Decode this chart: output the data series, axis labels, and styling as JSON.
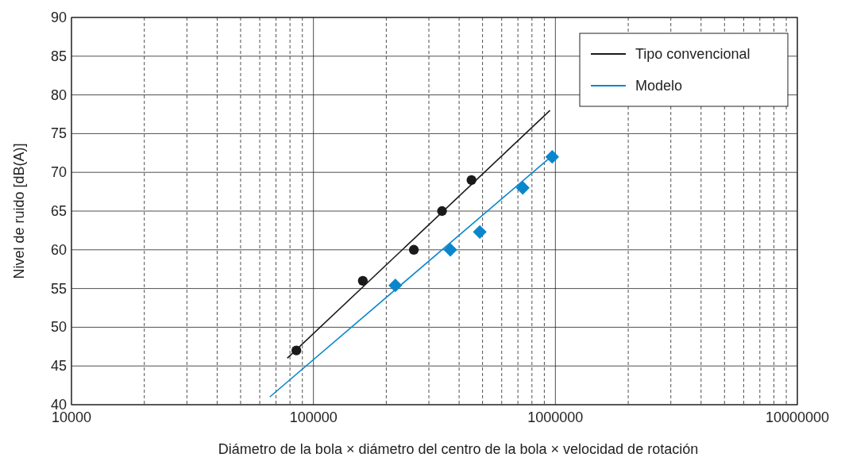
{
  "chart_data": {
    "type": "scatter",
    "xlabel": "Diámetro de la bola × diámetro del centro de la bola × velocidad de rotación",
    "ylabel": "Nivel de ruido [dB(A)]",
    "log": "x",
    "grid": true,
    "legend": "top right",
    "xlim": [
      10000,
      10000000
    ],
    "xticks": [
      10000,
      {
        "value": 20000,
        "label": null
      },
      {
        "value": 30000,
        "label": null
      },
      {
        "value": 40000,
        "label": null
      },
      {
        "value": 50000,
        "label": null
      },
      {
        "value": 60000,
        "label": null
      },
      {
        "value": 70000,
        "label": null
      },
      {
        "value": 80000,
        "label": null
      },
      {
        "value": 90000,
        "label": null
      },
      100000,
      {
        "value": 200000,
        "label": null
      },
      {
        "value": 300000,
        "label": null
      },
      {
        "value": 400000,
        "label": null
      },
      {
        "value": 500000,
        "label": null
      },
      {
        "value": 600000,
        "label": null
      },
      {
        "value": 700000,
        "label": null
      },
      {
        "value": 800000,
        "label": null
      },
      {
        "value": 900000,
        "label": null
      },
      1000000,
      {
        "value": 2000000,
        "label": null
      },
      {
        "value": 3000000,
        "label": null
      },
      {
        "value": 4000000,
        "label": null
      },
      {
        "value": 5000000,
        "label": null
      },
      {
        "value": 6000000,
        "label": null
      },
      {
        "value": 7000000,
        "label": null
      },
      {
        "value": 8000000,
        "label": null
      },
      {
        "value": 9000000,
        "label": null
      },
      10000000
    ],
    "ylim": [
      40,
      90
    ],
    "yticks": [
      40,
      45,
      50,
      55,
      60,
      65,
      70,
      75,
      80,
      85,
      90
    ],
    "series": [
      {
        "marker": "circle",
        "color": "#1a1a1a",
        "x": [
          85000,
          160000,
          260000,
          340000,
          450000
        ],
        "values": [
          47,
          56,
          60,
          65,
          69
        ]
      },
      {
        "type": "line",
        "marker": "none",
        "name": "Tipo convencional",
        "color": "#1a1a1a",
        "x": [
          78000,
          950000
        ],
        "values": [
          46,
          78
        ]
      },
      {
        "marker": "diamond",
        "color": "#0a87cc",
        "x": [
          218000,
          368000,
          487000,
          733000,
          970000
        ],
        "values": [
          55.4,
          60,
          62.3,
          68,
          72
        ]
      },
      {
        "type": "line",
        "marker": "none",
        "name": "Modelo",
        "color": "#0a87cc",
        "x": [
          66000,
          1000000
        ],
        "values": [
          41,
          72.5
        ]
      }
    ]
  }
}
